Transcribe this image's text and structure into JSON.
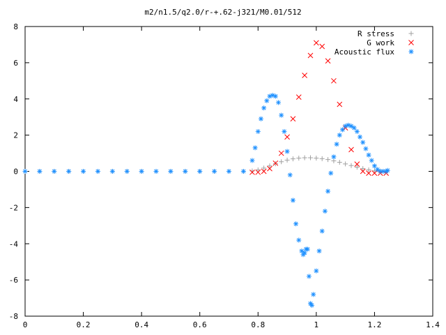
{
  "chart_data": {
    "type": "scatter",
    "title": "m2/n1.5/q2.0/r-+.62-j321/M0.01/512",
    "xlabel": "",
    "ylabel": "",
    "xlim": [
      0,
      1.4
    ],
    "ylim": [
      -8,
      8
    ],
    "x_ticks": [
      "0",
      "0.2",
      "0.4",
      "0.6",
      "0.8",
      "1",
      "1.2",
      "1.4"
    ],
    "y_ticks": [
      "-8",
      "-6",
      "-4",
      "-2",
      "0",
      "2",
      "4",
      "6",
      "8"
    ],
    "legend_position": "top-right",
    "grid": false,
    "series": [
      {
        "name": "R stress",
        "marker": "+",
        "color": "#a0a0a0",
        "x": [
          0.0,
          0.05,
          0.1,
          0.15,
          0.2,
          0.25,
          0.3,
          0.35,
          0.4,
          0.45,
          0.5,
          0.55,
          0.6,
          0.65,
          0.7,
          0.75,
          0.78,
          0.8,
          0.82,
          0.84,
          0.86,
          0.88,
          0.9,
          0.92,
          0.94,
          0.96,
          0.98,
          1.0,
          1.02,
          1.04,
          1.06,
          1.08,
          1.1,
          1.12,
          1.14,
          1.16,
          1.18,
          1.2,
          1.22,
          1.24
        ],
        "y": [
          0,
          0,
          0,
          0,
          0,
          0,
          0,
          0,
          0,
          0,
          0,
          0,
          0,
          0,
          0,
          0,
          0.02,
          0.08,
          0.18,
          0.3,
          0.42,
          0.53,
          0.62,
          0.69,
          0.73,
          0.75,
          0.75,
          0.73,
          0.7,
          0.65,
          0.58,
          0.5,
          0.41,
          0.32,
          0.23,
          0.15,
          0.08,
          0.03,
          0.01,
          0.0
        ]
      },
      {
        "name": "G work",
        "marker": "x",
        "color": "#ff0000",
        "x": [
          0.78,
          0.8,
          0.82,
          0.84,
          0.86,
          0.88,
          0.9,
          0.92,
          0.94,
          0.96,
          0.98,
          1.0,
          1.02,
          1.04,
          1.06,
          1.08,
          1.1,
          1.12,
          1.14,
          1.16,
          1.18,
          1.2,
          1.22,
          1.24
        ],
        "y": [
          -0.05,
          -0.05,
          0.0,
          0.15,
          0.45,
          1.0,
          1.9,
          2.9,
          4.1,
          5.3,
          6.4,
          7.1,
          6.9,
          6.1,
          5.0,
          3.7,
          2.4,
          1.2,
          0.4,
          0.0,
          -0.1,
          -0.1,
          -0.1,
          -0.1
        ]
      },
      {
        "name": "Acoustic flux",
        "marker": "*",
        "color": "#1e90ff",
        "x": [
          0.0,
          0.05,
          0.1,
          0.15,
          0.2,
          0.25,
          0.3,
          0.35,
          0.4,
          0.45,
          0.5,
          0.55,
          0.6,
          0.65,
          0.7,
          0.75,
          0.78,
          0.79,
          0.8,
          0.81,
          0.82,
          0.83,
          0.84,
          0.85,
          0.86,
          0.87,
          0.88,
          0.89,
          0.9,
          0.91,
          0.92,
          0.93,
          0.94,
          0.95,
          0.955,
          0.96,
          0.965,
          0.97,
          0.975,
          0.98,
          0.985,
          0.99,
          1.0,
          1.01,
          1.02,
          1.03,
          1.04,
          1.05,
          1.06,
          1.07,
          1.08,
          1.09,
          1.1,
          1.11,
          1.12,
          1.13,
          1.14,
          1.15,
          1.16,
          1.17,
          1.18,
          1.19,
          1.2,
          1.21,
          1.22,
          1.23,
          1.24,
          1.245
        ],
        "y": [
          0,
          0,
          0,
          0,
          0,
          0,
          0,
          0,
          0,
          0,
          0,
          0,
          0,
          0,
          0,
          0,
          0.6,
          1.3,
          2.2,
          2.9,
          3.5,
          3.9,
          4.15,
          4.2,
          4.15,
          3.8,
          3.1,
          2.2,
          1.1,
          -0.2,
          -1.6,
          -2.9,
          -3.8,
          -4.4,
          -4.6,
          -4.5,
          -4.3,
          -4.3,
          -5.8,
          -7.3,
          -7.4,
          -6.8,
          -5.5,
          -4.4,
          -3.3,
          -2.2,
          -1.1,
          -0.1,
          0.8,
          1.5,
          2.0,
          2.3,
          2.5,
          2.55,
          2.5,
          2.4,
          2.2,
          1.9,
          1.6,
          1.25,
          0.9,
          0.6,
          0.3,
          0.1,
          0.0,
          0.0,
          0.0,
          0.05
        ]
      }
    ]
  }
}
